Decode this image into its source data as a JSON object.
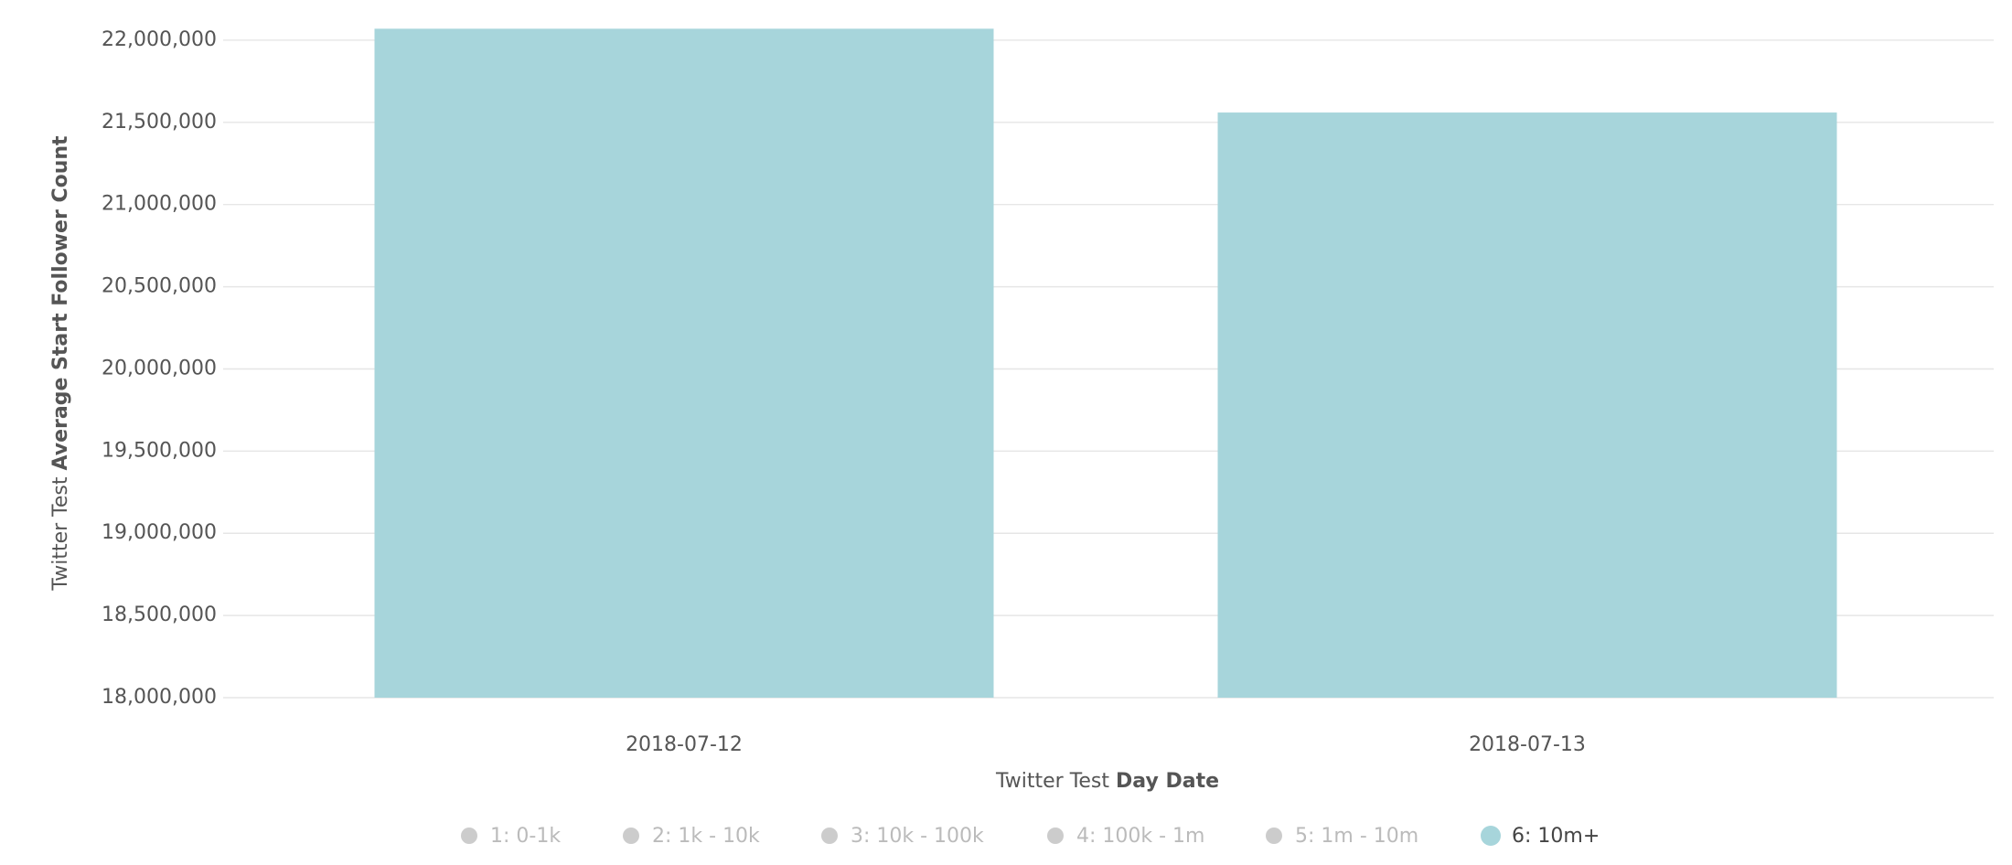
{
  "chart_data": {
    "type": "bar",
    "x_label": {
      "prefix": "Twitter Test",
      "main": "Day Date"
    },
    "y_label": {
      "prefix": "Twitter Test",
      "main": "Average Start Follower Count"
    },
    "categories": [
      "2018-07-12",
      "2018-07-13"
    ],
    "series": [
      {
        "name": "1: 0-1k",
        "color": "#cccccc",
        "visible": false,
        "values": [
          null,
          null
        ]
      },
      {
        "name": "2: 1k - 10k",
        "color": "#cccccc",
        "visible": false,
        "values": [
          null,
          null
        ]
      },
      {
        "name": "3: 10k - 100k",
        "color": "#cccccc",
        "visible": false,
        "values": [
          null,
          null
        ]
      },
      {
        "name": "4: 100k - 1m",
        "color": "#cccccc",
        "visible": false,
        "values": [
          null,
          null
        ]
      },
      {
        "name": "5: 1m - 10m",
        "color": "#cccccc",
        "visible": false,
        "values": [
          null,
          null
        ]
      },
      {
        "name": "6: 10m+",
        "color": "#a7d5db",
        "visible": true,
        "values": [
          22070000,
          21560000
        ]
      }
    ],
    "ylim": [
      18000000,
      22070000
    ],
    "yticks": [
      {
        "value": 18000000,
        "label": "18,000,000"
      },
      {
        "value": 18500000,
        "label": "18,500,000"
      },
      {
        "value": 19000000,
        "label": "19,000,000"
      },
      {
        "value": 19500000,
        "label": "19,500,000"
      },
      {
        "value": 20000000,
        "label": "20,000,000"
      },
      {
        "value": 20500000,
        "label": "20,500,000"
      },
      {
        "value": 21000000,
        "label": "21,000,000"
      },
      {
        "value": 21500000,
        "label": "21,500,000"
      },
      {
        "value": 22000000,
        "label": "22,000,000"
      }
    ],
    "grid": true
  }
}
